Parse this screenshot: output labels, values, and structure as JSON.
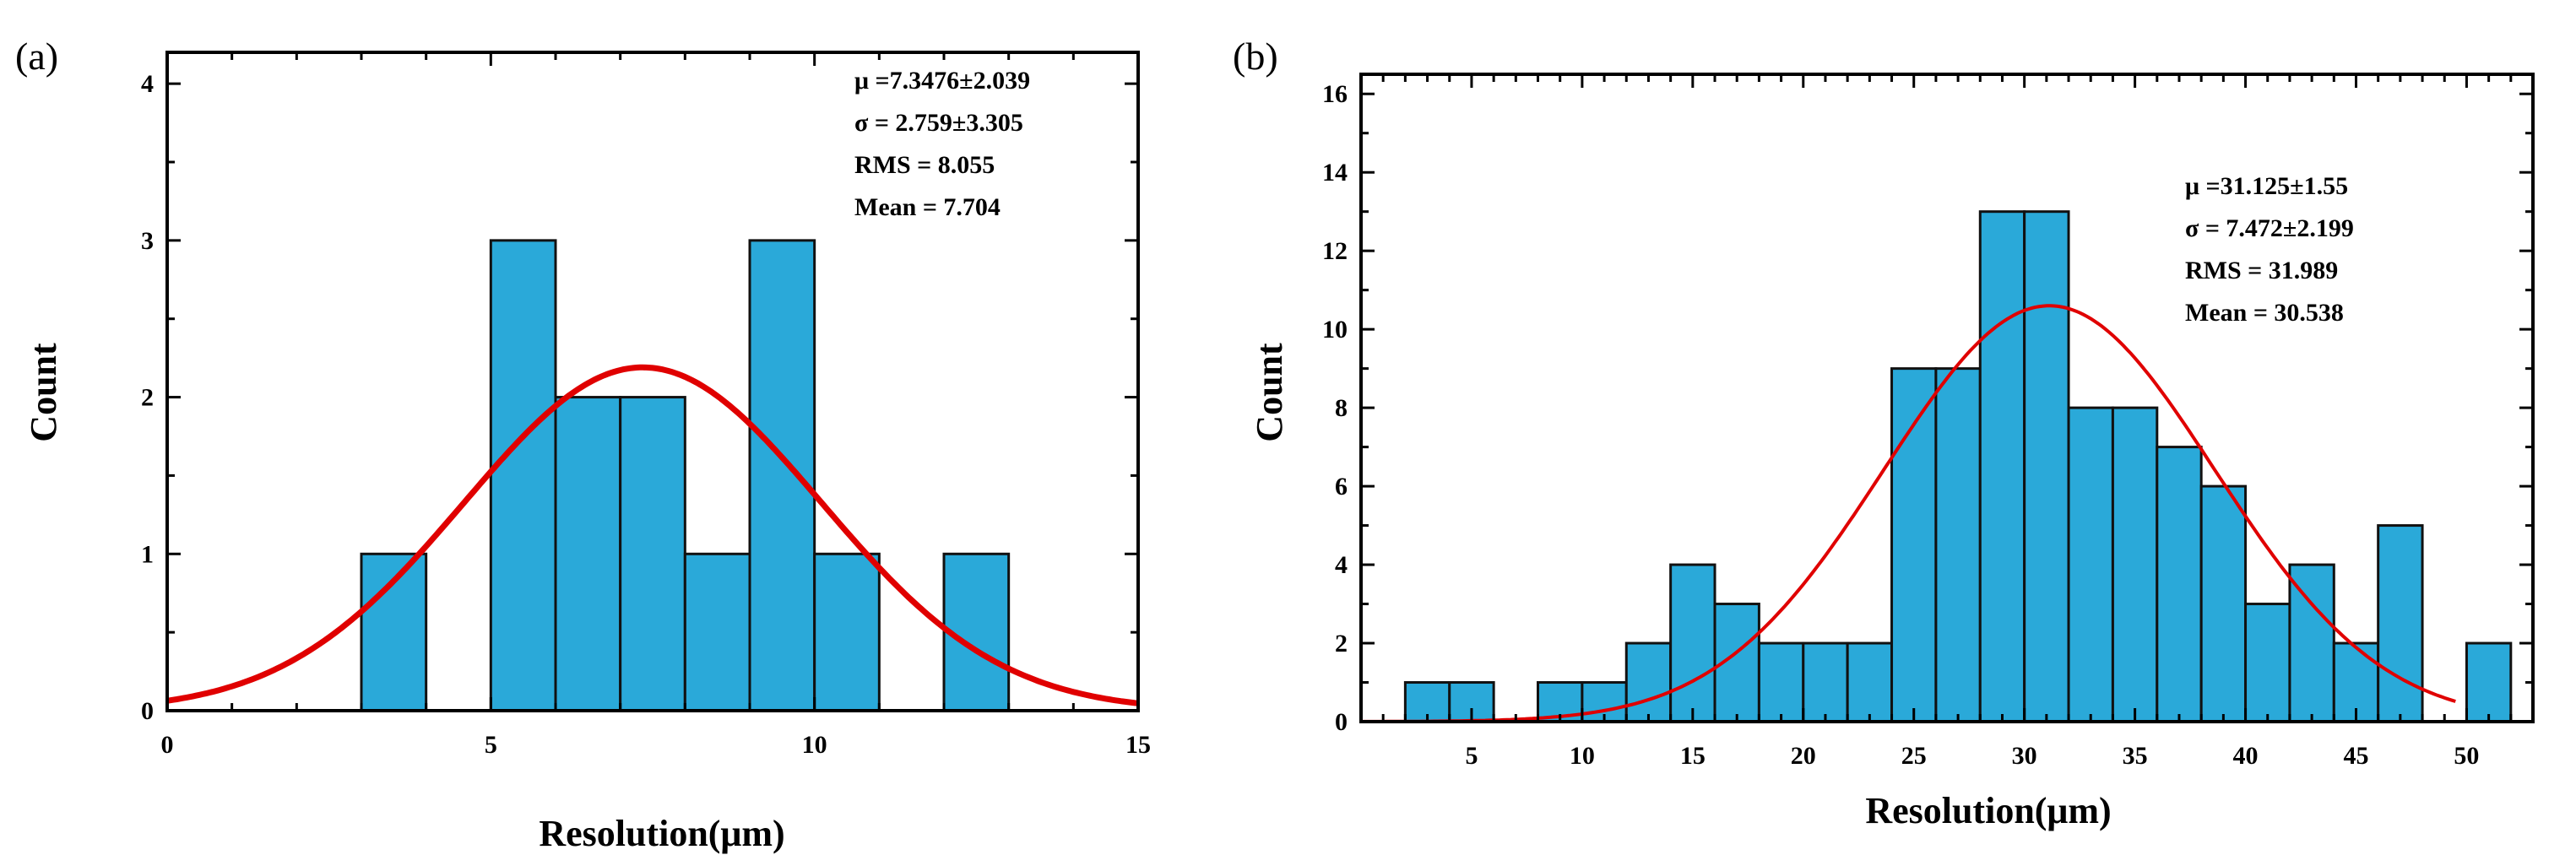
{
  "chart_data": [
    {
      "type": "bar",
      "panel_label": "(a)",
      "xlabel": "Resolution(μm)",
      "ylabel": "Count",
      "xlim": [
        0,
        15
      ],
      "ylim": [
        0,
        4.2
      ],
      "xticks": [
        0,
        5,
        10,
        15
      ],
      "yticks": [
        0,
        1,
        2,
        3,
        4
      ],
      "bar_color": "#2aa9d9",
      "curve_color": "#e00000",
      "bins": [
        {
          "start": 3,
          "end": 4,
          "count": 1
        },
        {
          "start": 5,
          "end": 6,
          "count": 3
        },
        {
          "start": 6,
          "end": 7,
          "count": 2
        },
        {
          "start": 7,
          "end": 8,
          "count": 2
        },
        {
          "start": 8,
          "end": 9,
          "count": 1
        },
        {
          "start": 9,
          "end": 10,
          "count": 3
        },
        {
          "start": 10,
          "end": 11,
          "count": 1
        },
        {
          "start": 12,
          "end": 13,
          "count": 1
        }
      ],
      "fit": {
        "mu": 7.3476,
        "sigma": 2.759,
        "peak": 2.19
      },
      "stats": [
        "μ =7.3476±2.039",
        "σ = 2.759±3.305",
        "RMS = 8.055",
        "Mean = 7.704"
      ]
    },
    {
      "type": "bar",
      "panel_label": "(b)",
      "xlabel": "Resolution(μm)",
      "ylabel": "Count",
      "xlim": [
        0,
        53
      ],
      "ylim": [
        0,
        16.5
      ],
      "xticks": [
        5,
        10,
        15,
        20,
        25,
        30,
        35,
        40,
        45,
        50
      ],
      "yticks": [
        0,
        2,
        4,
        6,
        8,
        10,
        12,
        14,
        16
      ],
      "bar_color": "#2aa9d9",
      "curve_color": "#e00000",
      "bins": [
        {
          "start": 2,
          "end": 4,
          "count": 1
        },
        {
          "start": 4,
          "end": 6,
          "count": 1
        },
        {
          "start": 8,
          "end": 10,
          "count": 1
        },
        {
          "start": 10,
          "end": 12,
          "count": 1
        },
        {
          "start": 12,
          "end": 14,
          "count": 2
        },
        {
          "start": 14,
          "end": 16,
          "count": 4
        },
        {
          "start": 16,
          "end": 18,
          "count": 3
        },
        {
          "start": 18,
          "end": 20,
          "count": 2
        },
        {
          "start": 20,
          "end": 22,
          "count": 2
        },
        {
          "start": 22,
          "end": 24,
          "count": 2
        },
        {
          "start": 24,
          "end": 26,
          "count": 9
        },
        {
          "start": 26,
          "end": 28,
          "count": 9
        },
        {
          "start": 28,
          "end": 30,
          "count": 13
        },
        {
          "start": 30,
          "end": 32,
          "count": 13
        },
        {
          "start": 32,
          "end": 34,
          "count": 8
        },
        {
          "start": 34,
          "end": 36,
          "count": 8
        },
        {
          "start": 36,
          "end": 38,
          "count": 7
        },
        {
          "start": 38,
          "end": 40,
          "count": 6
        },
        {
          "start": 40,
          "end": 42,
          "count": 3
        },
        {
          "start": 42,
          "end": 44,
          "count": 4
        },
        {
          "start": 44,
          "end": 46,
          "count": 2
        },
        {
          "start": 46,
          "end": 48,
          "count": 5
        },
        {
          "start": 50,
          "end": 52,
          "count": 2
        }
      ],
      "fit": {
        "mu": 31.125,
        "sigma": 7.472,
        "peak": 10.6,
        "x_end": 49.5
      },
      "stats": [
        "μ =31.125±1.55",
        "σ = 7.472±2.199",
        "RMS = 31.989",
        "Mean = 30.538"
      ]
    }
  ]
}
